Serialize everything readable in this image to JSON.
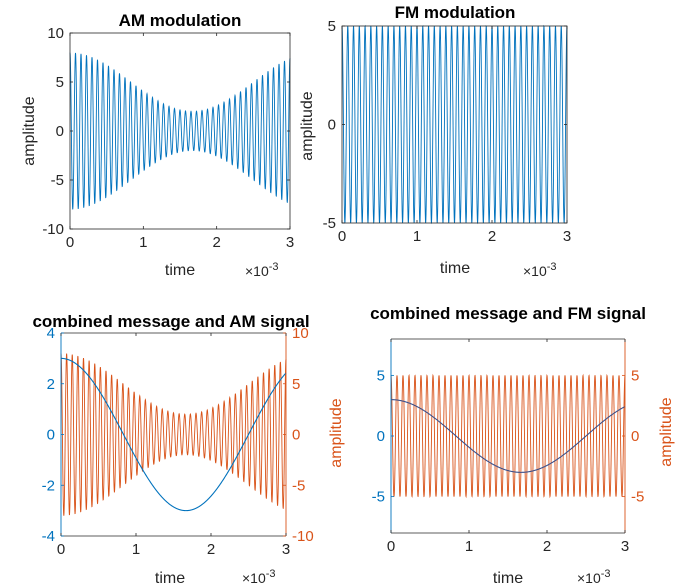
{
  "colors": {
    "blue": "#0072BD",
    "orange": "#D95319",
    "axis": "#262626",
    "dark_blue": "#3B4F8A"
  },
  "chart_data": [
    {
      "type": "line",
      "title": "AM modulation",
      "xlabel": "time",
      "ylabel": "amplitude",
      "x_exponent": "×10",
      "x_exponent_power": "-3",
      "xlim": [
        0,
        3
      ],
      "ylim": [
        -10,
        10
      ],
      "xticks": [
        0,
        1,
        2,
        3
      ],
      "xtick_labels": [
        "0",
        "1",
        "2",
        "3"
      ],
      "yticks": [
        -10,
        -5,
        0,
        5,
        10
      ],
      "ytick_labels": [
        "-10",
        "-5",
        "0",
        "5",
        "10"
      ],
      "series": [
        {
          "color": "#0072BD",
          "kind": "am",
          "carrier_cycles": 40,
          "envelope": "5+3cos(2*pi*300*t)"
        }
      ]
    },
    {
      "type": "line",
      "title": "FM modulation",
      "xlabel": "time",
      "ylabel": "amplitude",
      "x_exponent": "×10",
      "x_exponent_power": "-3",
      "xlim": [
        0,
        3
      ],
      "ylim": [
        -5,
        5
      ],
      "xticks": [
        0,
        1,
        2,
        3
      ],
      "xtick_labels": [
        "0",
        "1",
        "2",
        "3"
      ],
      "yticks": [
        -5,
        0,
        5
      ],
      "ytick_labels": [
        "-5",
        "0",
        "5"
      ],
      "series": [
        {
          "color": "#0072BD",
          "kind": "fm",
          "amplitude": 5,
          "carrier_cycles": 39
        }
      ]
    },
    {
      "type": "line",
      "title": "combined message and AM signal",
      "xlabel": "time",
      "ylabel_right": "amplitude",
      "x_exponent": "×10",
      "x_exponent_power": "-3",
      "xlim": [
        0,
        3
      ],
      "ylim_left": [
        -4,
        4
      ],
      "ylim_right": [
        -10,
        10
      ],
      "xticks": [
        0,
        1,
        2,
        3
      ],
      "xtick_labels": [
        "0",
        "1",
        "2",
        "3"
      ],
      "yticks_left": [
        -4,
        -2,
        0,
        2,
        4
      ],
      "ytick_labels_left": [
        "-4",
        "-2",
        "0",
        "2",
        "4"
      ],
      "yticks_right": [
        -10,
        -5,
        0,
        5,
        10
      ],
      "ytick_labels_right": [
        "-10",
        "-5",
        "0",
        "5",
        "10"
      ],
      "series": [
        {
          "color": "#D95319",
          "axis": "right",
          "kind": "am",
          "carrier_cycles": 40,
          "envelope": "5+3cos(2*pi*300*t)"
        },
        {
          "color": "#0072BD",
          "axis": "left",
          "kind": "message",
          "amplitude": 3,
          "frequency_hz": 300
        }
      ]
    },
    {
      "type": "line",
      "title": "combined message and FM signal",
      "xlabel": "time",
      "ylabel_right": "amplitude",
      "x_exponent": "×10",
      "x_exponent_power": "-3",
      "xlim": [
        0,
        3
      ],
      "ylim_left": [
        -8,
        8
      ],
      "ylim_right": [
        -8,
        8
      ],
      "xticks": [
        0,
        1,
        2,
        3
      ],
      "xtick_labels": [
        "0",
        "1",
        "2",
        "3"
      ],
      "yticks_left": [
        -5,
        0,
        5
      ],
      "ytick_labels_left": [
        "-5",
        "0",
        "5"
      ],
      "yticks_right": [
        -5,
        0,
        5
      ],
      "ytick_labels_right": [
        "-5",
        "0",
        "5"
      ],
      "series": [
        {
          "color": "#D95319",
          "axis": "right",
          "kind": "fm",
          "amplitude": 5,
          "carrier_cycles": 39
        },
        {
          "color": "#3B4F8A",
          "axis": "left",
          "kind": "message",
          "amplitude": 3,
          "frequency_hz": 300
        }
      ]
    }
  ]
}
